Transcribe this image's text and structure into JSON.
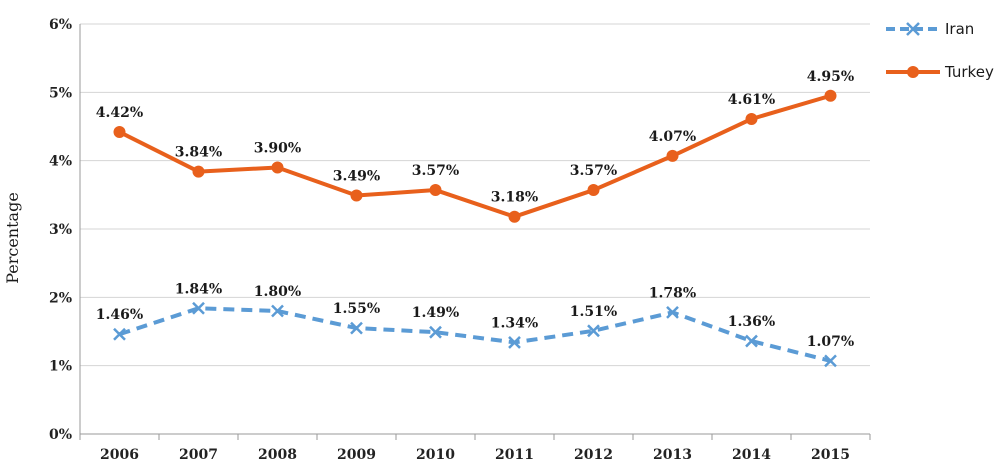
{
  "chart_data": {
    "type": "line",
    "title": "",
    "xlabel": "",
    "ylabel": "Percentage",
    "x": [
      "2006",
      "2007",
      "2008",
      "2009",
      "2010",
      "2011",
      "2012",
      "2013",
      "2014",
      "2015"
    ],
    "ylim": [
      0,
      6
    ],
    "y_ticks": [
      "0%",
      "1%",
      "2%",
      "3%",
      "4%",
      "5%",
      "6%"
    ],
    "grid": true,
    "legend_position": "top-right",
    "series": [
      {
        "name": "Iran",
        "color": "#5b9bd5",
        "style": "dashed",
        "marker": "x",
        "values": [
          1.46,
          1.84,
          1.8,
          1.55,
          1.49,
          1.34,
          1.51,
          1.78,
          1.36,
          1.07
        ],
        "labels": [
          "1.46%",
          "1.84%",
          "1.80%",
          "1.55%",
          "1.49%",
          "1.34%",
          "1.51%",
          "1.78%",
          "1.36%",
          "1.07%"
        ]
      },
      {
        "name": "Turkey",
        "color": "#e8601c",
        "style": "solid",
        "marker": "circle",
        "values": [
          4.42,
          3.84,
          3.9,
          3.49,
          3.57,
          3.18,
          3.57,
          4.07,
          4.61,
          4.95
        ],
        "labels": [
          "4.42%",
          "3.84%",
          "3.90%",
          "3.49%",
          "3.57%",
          "3.18%",
          "3.57%",
          "4.07%",
          "4.61%",
          "4.95%"
        ]
      }
    ]
  }
}
